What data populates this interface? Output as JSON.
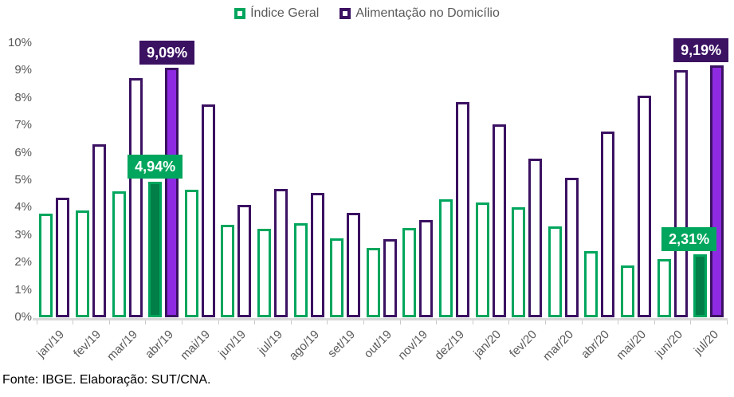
{
  "legend": [
    {
      "label": "Índice Geral",
      "color": "#00A65D"
    },
    {
      "label": "Alimentação no Domicílio",
      "color": "#3B1162"
    }
  ],
  "footer": "Fonte: IBGE. Elaboração: SUT/CNA.",
  "colors": {
    "green": "#00A65D",
    "green_highlight_fill": "#027F48",
    "purple_dark": "#3B1162",
    "purple_highlight_fill": "#8E2BE2",
    "axis_line": "#D9D9D9",
    "tick": "#C9C9C9",
    "axis_text": "#595959",
    "value_label_text": "#FFFFFF"
  },
  "chart_data": {
    "type": "bar",
    "categories": [
      "jan/19",
      "fev/19",
      "mar/19",
      "abr/19",
      "mai/19",
      "jun/19",
      "jul/19",
      "ago/19",
      "set/19",
      "out/19",
      "nov/19",
      "dez/19",
      "jan/20",
      "fev/20",
      "mar/20",
      "abr/20",
      "mai/20",
      "jun/20",
      "jul/20"
    ],
    "series": [
      {
        "name": "Índice Geral",
        "values": [
          3.78,
          3.89,
          4.58,
          4.94,
          4.66,
          3.37,
          3.22,
          3.43,
          2.89,
          2.54,
          3.27,
          4.31,
          4.19,
          4.01,
          3.3,
          2.4,
          1.88,
          2.13,
          2.31
        ],
        "border_color": "#00A65D",
        "highlight_fill": "#027F48"
      },
      {
        "name": "Alimentação no Domicílio",
        "values": [
          4.37,
          6.32,
          8.72,
          9.09,
          7.76,
          4.1,
          4.68,
          4.53,
          3.81,
          2.85,
          3.54,
          7.85,
          7.03,
          5.78,
          5.08,
          6.78,
          8.08,
          9.0,
          9.19
        ],
        "border_color": "#3B1162",
        "highlight_fill": "#8E2BE2"
      }
    ],
    "highlighted_categories": [
      "abr/19",
      "jul/20"
    ],
    "value_labels": [
      {
        "category": "abr/19",
        "series": "Índice Geral",
        "text": "4,94%"
      },
      {
        "category": "abr/19",
        "series": "Alimentação no Domicílio",
        "text": "9,09%"
      },
      {
        "category": "jul/20",
        "series": "Índice Geral",
        "text": "2,31%"
      },
      {
        "category": "jul/20",
        "series": "Alimentação no Domicílio",
        "text": "9,19%"
      }
    ],
    "ylim": [
      0,
      10
    ],
    "ytick_labels": [
      "0%",
      "1%",
      "2%",
      "3%",
      "4%",
      "5%",
      "6%",
      "7%",
      "8%",
      "9%",
      "10%"
    ],
    "grid": false,
    "legend_position": "top",
    "title": "",
    "xlabel": "",
    "ylabel": ""
  }
}
